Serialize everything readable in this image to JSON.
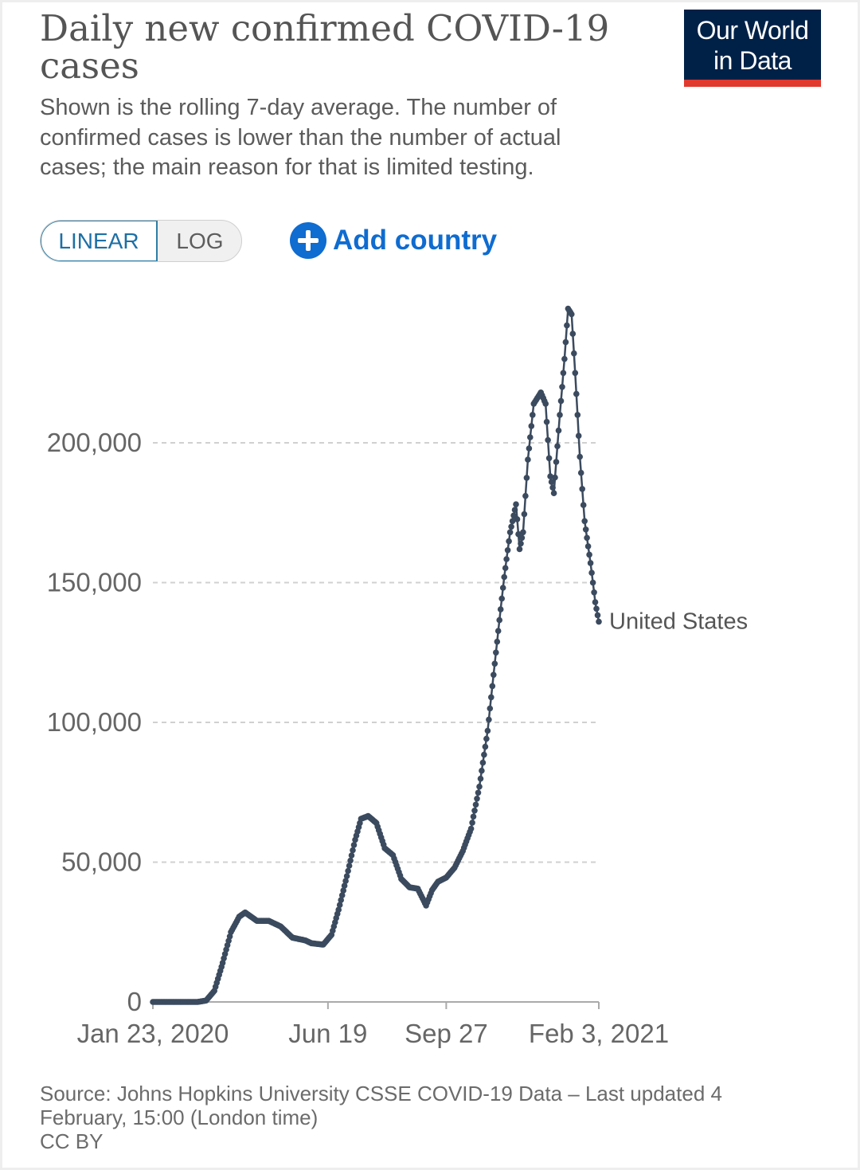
{
  "header": {
    "title": "Daily new confirmed COVID-19 cases",
    "subtitle": "Shown is the rolling 7-day average. The number of confirmed cases is lower than the number of actual cases; the main reason for that is limited testing.",
    "logo_text_line1": "Our World",
    "logo_text_line2": "in Data"
  },
  "controls": {
    "linear_label": "LINEAR",
    "log_label": "LOG",
    "selected_scale": "linear",
    "add_country_label": "Add country"
  },
  "footer": {
    "source": "Source: Johns Hopkins University CSSE COVID-19 Data – Last updated 4 February, 15:00 (London time)",
    "license": "CC BY"
  },
  "colors": {
    "line": "#3b4a5e",
    "grid": "#d0d0d0",
    "axis": "#aaaaaa",
    "accent": "#0f6cd0",
    "logo_bg": "#002147",
    "logo_bar": "#e03a2e"
  },
  "chart_data": {
    "type": "line",
    "title": "Daily new confirmed COVID-19 cases",
    "xlabel": "",
    "ylabel": "",
    "x_axis": {
      "type": "date",
      "range": [
        "2020-01-23",
        "2021-02-03"
      ],
      "ticks": [
        {
          "date": "2020-01-23",
          "label": "Jan 23, 2020"
        },
        {
          "date": "2020-06-19",
          "label": "Jun 19"
        },
        {
          "date": "2020-09-27",
          "label": "Sep 27"
        },
        {
          "date": "2021-02-03",
          "label": "Feb 3, 2021"
        }
      ]
    },
    "y_axis": {
      "range": [
        0,
        250000
      ],
      "ticks": [
        {
          "value": 0,
          "label": "0"
        },
        {
          "value": 50000,
          "label": "50,000"
        },
        {
          "value": 100000,
          "label": "100,000"
        },
        {
          "value": 150000,
          "label": "150,000"
        },
        {
          "value": 200000,
          "label": "200,000"
        }
      ]
    },
    "grid": "horizontal dashed",
    "legend": "end-of-line label",
    "series": [
      {
        "name": "United States",
        "points": [
          [
            "2020-01-23",
            0
          ],
          [
            "2020-03-01",
            0
          ],
          [
            "2020-03-08",
            500
          ],
          [
            "2020-03-15",
            4000
          ],
          [
            "2020-03-22",
            14000
          ],
          [
            "2020-03-29",
            25000
          ],
          [
            "2020-04-05",
            30500
          ],
          [
            "2020-04-10",
            32000
          ],
          [
            "2020-04-20",
            29000
          ],
          [
            "2020-04-30",
            29000
          ],
          [
            "2020-05-10",
            27000
          ],
          [
            "2020-05-20",
            23000
          ],
          [
            "2020-05-31",
            22000
          ],
          [
            "2020-06-05",
            21000
          ],
          [
            "2020-06-15",
            20500
          ],
          [
            "2020-06-22",
            24000
          ],
          [
            "2020-06-28",
            33000
          ],
          [
            "2020-07-05",
            45000
          ],
          [
            "2020-07-12",
            58000
          ],
          [
            "2020-07-17",
            65500
          ],
          [
            "2020-07-23",
            66500
          ],
          [
            "2020-07-30",
            64000
          ],
          [
            "2020-08-06",
            55000
          ],
          [
            "2020-08-13",
            52500
          ],
          [
            "2020-08-20",
            44000
          ],
          [
            "2020-08-27",
            41000
          ],
          [
            "2020-09-03",
            40500
          ],
          [
            "2020-09-10",
            34500
          ],
          [
            "2020-09-15",
            40000
          ],
          [
            "2020-09-20",
            43000
          ],
          [
            "2020-09-27",
            44500
          ],
          [
            "2020-10-04",
            48000
          ],
          [
            "2020-10-11",
            54000
          ],
          [
            "2020-10-18",
            62000
          ],
          [
            "2020-10-25",
            77000
          ],
          [
            "2020-11-01",
            97000
          ],
          [
            "2020-11-08",
            125000
          ],
          [
            "2020-11-15",
            152000
          ],
          [
            "2020-11-20",
            168000
          ],
          [
            "2020-11-25",
            178000
          ],
          [
            "2020-11-28",
            162000
          ],
          [
            "2020-12-01",
            168000
          ],
          [
            "2020-12-05",
            194000
          ],
          [
            "2020-12-10",
            214000
          ],
          [
            "2020-12-16",
            218000
          ],
          [
            "2020-12-20",
            214000
          ],
          [
            "2020-12-24",
            188000
          ],
          [
            "2020-12-27",
            182000
          ],
          [
            "2021-01-01",
            210000
          ],
          [
            "2021-01-05",
            230000
          ],
          [
            "2021-01-08",
            248000
          ],
          [
            "2021-01-11",
            246000
          ],
          [
            "2021-01-14",
            225000
          ],
          [
            "2021-01-18",
            195000
          ],
          [
            "2021-01-22",
            172000
          ],
          [
            "2021-01-27",
            157000
          ],
          [
            "2021-01-31",
            143000
          ],
          [
            "2021-02-03",
            136000
          ]
        ]
      }
    ]
  }
}
